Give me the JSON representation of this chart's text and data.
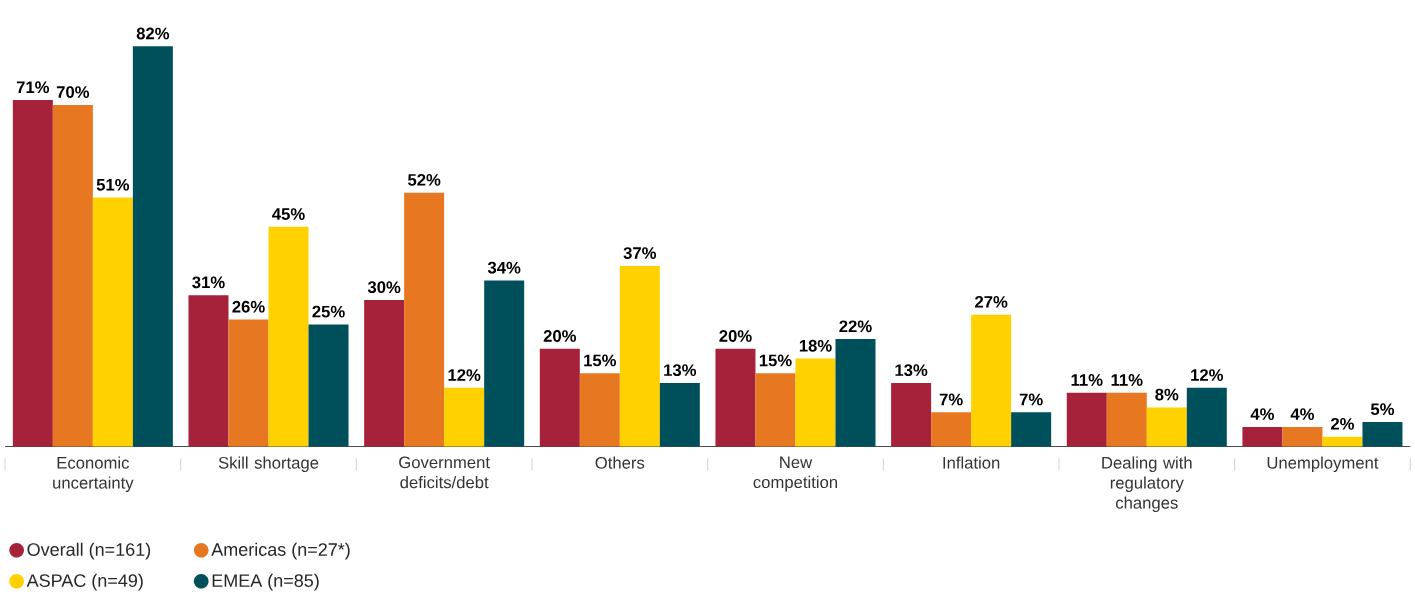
{
  "chart_data": {
    "type": "bar",
    "categories": [
      "Economic uncertainty",
      "Skill shortage",
      "Government deficits/debt",
      "Others",
      "New competition",
      "Inflation",
      "Dealing with regulatory changes",
      "Unemployment"
    ],
    "series": [
      {
        "name": "Overall (n=161)",
        "color": "#a6213a",
        "values": [
          71,
          31,
          30,
          20,
          20,
          13,
          11,
          4
        ],
        "value_labels": [
          "71%",
          "31%",
          "30%",
          "20%",
          "20%",
          "13%",
          "11%",
          "4%"
        ]
      },
      {
        "name": "Americas (n=27*)",
        "color": "#e87722",
        "values": [
          70,
          26,
          52,
          15,
          15,
          7,
          11,
          4
        ],
        "value_labels": [
          "70%",
          "26%",
          "52%",
          "15%",
          "15%",
          "7%",
          "11%",
          "4%"
        ]
      },
      {
        "name": "ASPAC (n=49)",
        "color": "#ffd100",
        "values": [
          51,
          45,
          12,
          37,
          18,
          27,
          8,
          2
        ],
        "value_labels": [
          "51%",
          "45%",
          "12%",
          "37%",
          "18%",
          "27%",
          "8%",
          "2%"
        ]
      },
      {
        "name": "EMEA (n=85)",
        "color": "#00505c",
        "values": [
          82,
          25,
          34,
          13,
          22,
          7,
          12,
          5
        ],
        "value_labels": [
          "82%",
          "25%",
          "34%",
          "13%",
          "22%",
          "7%",
          "12%",
          "5%"
        ]
      }
    ],
    "legend": "bottom left"
  }
}
